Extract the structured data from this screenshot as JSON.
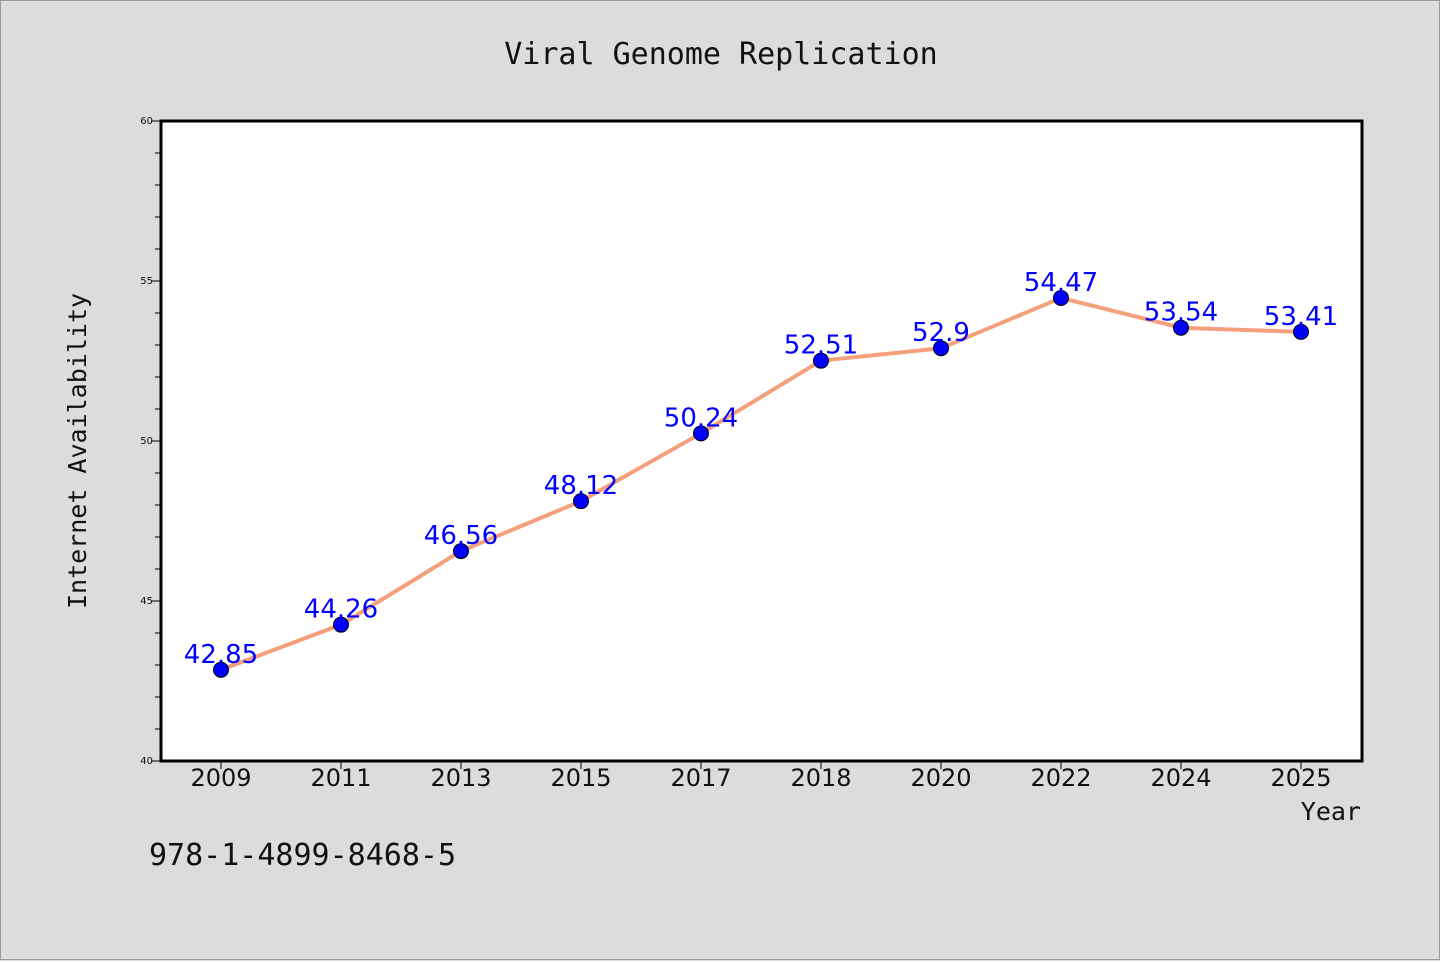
{
  "footer_text": "978-1-4899-8468-5",
  "chart_data": {
    "type": "line",
    "title": "Viral Genome Replication",
    "xlabel": "Year",
    "ylabel": "Internet Availability",
    "categories": [
      "2009",
      "2011",
      "2013",
      "2015",
      "2017",
      "2018",
      "2020",
      "2022",
      "2024",
      "2025"
    ],
    "values": [
      42.85,
      44.26,
      46.56,
      48.12,
      50.24,
      52.51,
      52.9,
      54.47,
      53.54,
      53.41
    ],
    "data_labels": [
      "42.85",
      "44.26",
      "46.56",
      "48.12",
      "50.24",
      "52.51",
      "52.9",
      "54.47",
      "53.54",
      "53.41"
    ],
    "ylim": [
      40,
      60
    ],
    "yticks": [
      "40",
      "45",
      "50",
      "55",
      "60"
    ],
    "grid": false,
    "legend": "none",
    "line_color": "#f4a07c",
    "marker_color": "#0000ff",
    "label_color": "#0000ff",
    "plot_background": "#ffffff",
    "page_background": "#dcdcdc"
  }
}
